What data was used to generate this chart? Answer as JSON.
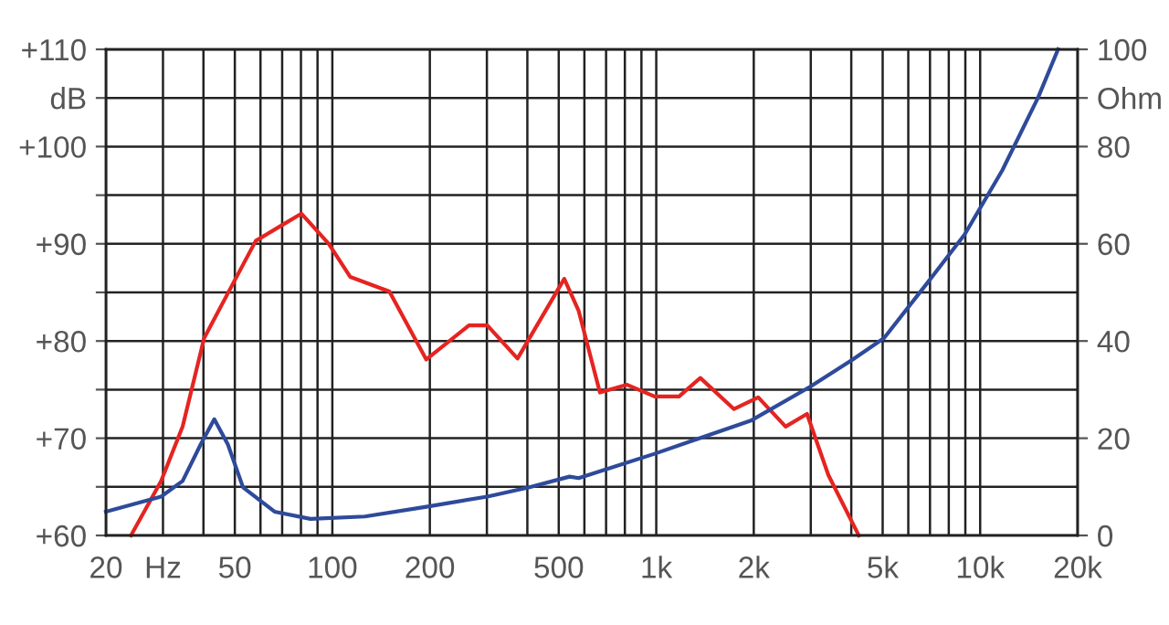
{
  "chart_data": {
    "type": "line",
    "log": "x",
    "grid": true,
    "xlim": [
      20,
      20000
    ],
    "xticks": [
      20,
      {
        "value": 30,
        "label": "Hz"
      },
      {
        "value": 40,
        "label": null
      },
      50,
      {
        "value": 60,
        "label": null
      },
      {
        "value": 70,
        "label": null
      },
      {
        "value": 80,
        "label": null
      },
      {
        "value": 90,
        "label": null
      },
      100,
      200,
      {
        "value": 300,
        "label": null
      },
      {
        "value": 400,
        "label": null
      },
      500,
      {
        "value": 600,
        "label": null
      },
      {
        "value": 700,
        "label": null
      },
      {
        "value": 800,
        "label": null
      },
      {
        "value": 900,
        "label": null
      },
      {
        "value": 1000,
        "label": "1k"
      },
      {
        "value": 2000,
        "label": "2k"
      },
      {
        "value": 3000,
        "label": null
      },
      {
        "value": 4000,
        "label": null
      },
      {
        "value": 5000,
        "label": "5k"
      },
      {
        "value": 6000,
        "label": null
      },
      {
        "value": 7000,
        "label": null
      },
      {
        "value": 8000,
        "label": null
      },
      {
        "value": 9000,
        "label": null
      },
      {
        "value": 10000,
        "label": "10k"
      },
      {
        "value": 20000,
        "label": "20k"
      }
    ],
    "ylim": [
      60,
      110
    ],
    "yticks": [
      {
        "value": 60,
        "label": "+60"
      },
      {
        "value": 65,
        "label": null
      },
      {
        "value": 70,
        "label": "+70"
      },
      {
        "value": 75,
        "label": null
      },
      {
        "value": 80,
        "label": "+80"
      },
      {
        "value": 85,
        "label": null
      },
      {
        "value": 90,
        "label": "+90"
      },
      {
        "value": 95,
        "label": null
      },
      {
        "value": 100,
        "label": "+100"
      },
      {
        "value": 105,
        "label": "dB"
      },
      {
        "value": 110,
        "label": "+110"
      }
    ],
    "y2lim": [
      0,
      100
    ],
    "y2ticks": [
      0,
      20,
      40,
      60,
      80,
      {
        "value": 90,
        "label": "Ohm"
      },
      100
    ],
    "series": [
      {
        "color": "#e52421",
        "x": [
          23.9,
          29.6,
          34.5,
          40.2,
          48.8,
          58,
          69,
          80.3,
          97.5,
          113.5,
          150,
          195,
          264,
          301,
          373,
          520,
          576,
          670,
          813,
          988,
          1176,
          1368,
          1738,
          2065,
          2508,
          2920,
          3400,
          4220
        ],
        "values": [
          60,
          65.6,
          71.2,
          80.3,
          85.6,
          90.3,
          91.8,
          93.1,
          90.0,
          86.6,
          85.1,
          78.1,
          81.6,
          81.6,
          78.2,
          86.4,
          83.1,
          74.7,
          75.5,
          74.3,
          74.3,
          76.2,
          73.0,
          74.2,
          71.2,
          72.5,
          66.2,
          60
        ]
      },
      {
        "color": "#2e4a9a",
        "axis": "y2",
        "x": [
          20,
          29.6,
          34.5,
          39.2,
          43.2,
          47.6,
          53,
          66.3,
          85.6,
          126,
          195,
          301,
          406,
          540,
          576,
          988,
          1970,
          2986,
          4040,
          5050,
          6860,
          8950,
          11700,
          15100,
          17400
        ],
        "values": [
          4.9,
          8.0,
          11.2,
          18.7,
          23.9,
          18.7,
          9.9,
          4.9,
          3.4,
          3.9,
          5.9,
          8.0,
          9.9,
          12.1,
          11.8,
          16.8,
          23.7,
          30.6,
          36.2,
          40.6,
          51.9,
          61.9,
          75.1,
          90.1,
          100
        ]
      }
    ]
  }
}
